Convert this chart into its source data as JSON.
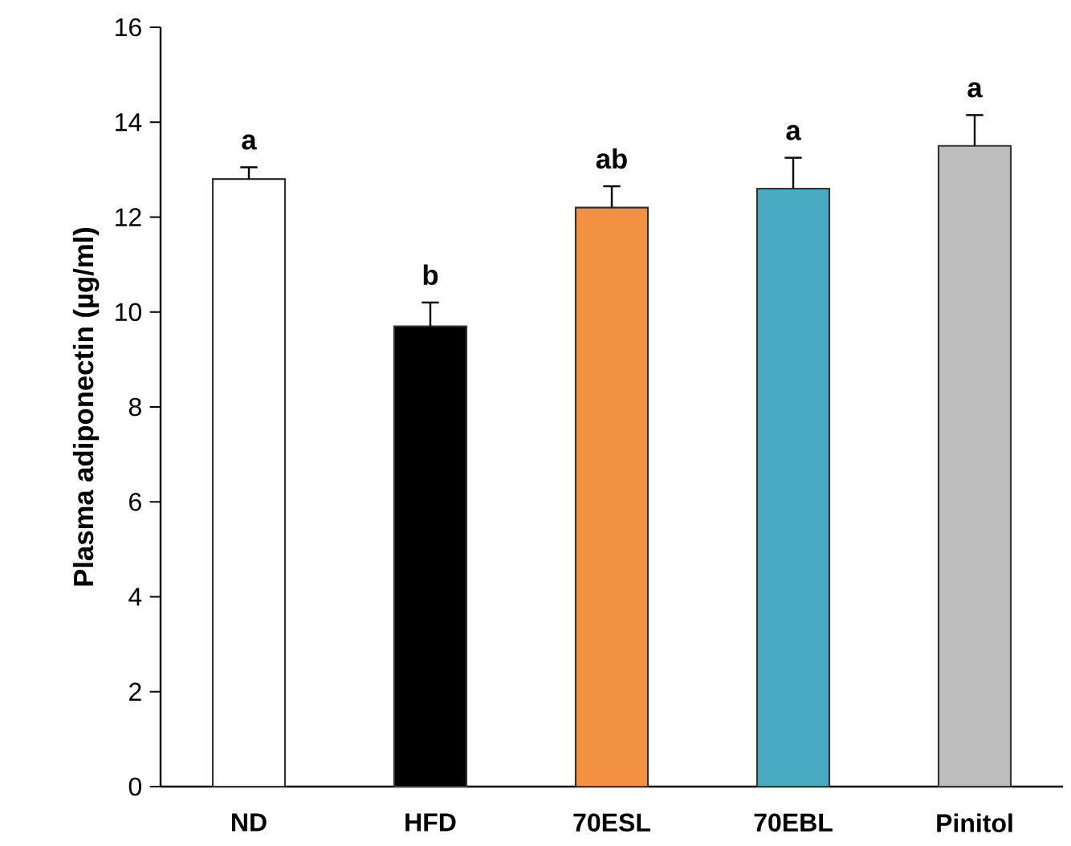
{
  "chart_data": {
    "type": "bar",
    "ylabel": "Plasma adiponectin (µg/ml)",
    "categories": [
      "ND",
      "HFD",
      "70ESL",
      "70EBL",
      "Pinitol"
    ],
    "values": [
      12.8,
      9.7,
      12.2,
      12.6,
      13.5
    ],
    "errors": [
      0.25,
      0.5,
      0.45,
      0.65,
      0.65
    ],
    "colors": [
      "#ffffff",
      "#000000",
      "#f39242",
      "#4aaac3",
      "#bdbdbd"
    ],
    "ylim": [
      0,
      16
    ],
    "yticks": [
      0,
      2,
      4,
      6,
      8,
      10,
      12,
      14,
      16
    ],
    "grid": false,
    "annotations": [
      {
        "text": "a",
        "x": "ND",
        "y": 13.05
      },
      {
        "text": "b",
        "x": "HFD",
        "y": 10.2
      },
      {
        "text": "ab",
        "x": "70ESL",
        "y": 12.65
      },
      {
        "text": "a",
        "x": "70EBL",
        "y": 13.25
      },
      {
        "text": "a",
        "x": "Pinitol",
        "y": 14.15
      }
    ]
  }
}
